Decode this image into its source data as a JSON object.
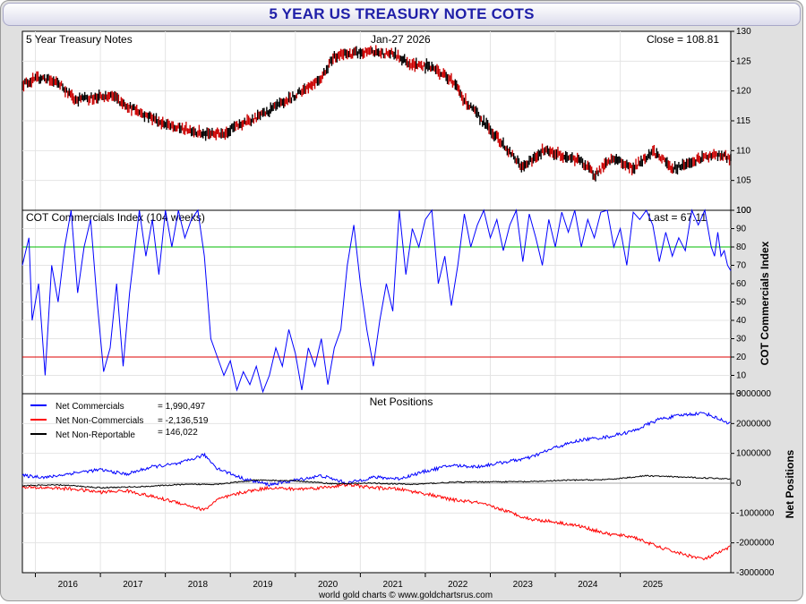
{
  "title": "5 YEAR US TREASURY NOTE COTS",
  "footer": "world gold charts © www.goldchartsrus.com",
  "colors": {
    "title": "#1f1fa8",
    "commercials": "#0000ff",
    "non_commercials": "#ff0000",
    "non_reportable": "#000000",
    "upper_band": "#00bb00",
    "lower_band": "#dd0000"
  },
  "x_axis": {
    "years": [
      "2016",
      "2017",
      "2018",
      "2019",
      "2020",
      "2021",
      "2022",
      "2023",
      "2024",
      "2025"
    ],
    "range": [
      2015.2,
      2026.1
    ]
  },
  "chart_data": [
    {
      "type": "bar",
      "style": "ohlc",
      "title": "5 Year Treasury Notes",
      "date": "Jan-27  2026",
      "last_label": "Close = 108.81",
      "ylim": [
        100,
        130
      ],
      "yticks": [
        "100",
        "105",
        "110",
        "115",
        "120",
        "125",
        "130"
      ],
      "points": [
        [
          2015.2,
          121.2
        ],
        [
          2015.5,
          122.3
        ],
        [
          2015.8,
          121.0
        ],
        [
          2016.0,
          118.6
        ],
        [
          2016.3,
          118.9
        ],
        [
          2016.6,
          119.0
        ],
        [
          2016.9,
          117.0
        ],
        [
          2017.2,
          115.5
        ],
        [
          2017.5,
          113.9
        ],
        [
          2017.8,
          113.5
        ],
        [
          2018.0,
          112.7
        ],
        [
          2018.3,
          113.0
        ],
        [
          2018.6,
          114.6
        ],
        [
          2018.9,
          116.0
        ],
        [
          2019.2,
          117.9
        ],
        [
          2019.5,
          120.0
        ],
        [
          2019.8,
          122.3
        ],
        [
          2020.0,
          125.9
        ],
        [
          2020.3,
          126.3
        ],
        [
          2020.6,
          126.5
        ],
        [
          2020.9,
          126.2
        ],
        [
          2021.2,
          124.5
        ],
        [
          2021.5,
          124.0
        ],
        [
          2021.8,
          122.0
        ],
        [
          2022.0,
          118.5
        ],
        [
          2022.3,
          114.7
        ],
        [
          2022.6,
          111.0
        ],
        [
          2022.9,
          107.1
        ],
        [
          2023.2,
          110.0
        ],
        [
          2023.5,
          109.3
        ],
        [
          2023.8,
          108.2
        ],
        [
          2024.0,
          106.0
        ],
        [
          2024.3,
          108.7
        ],
        [
          2024.6,
          107.0
        ],
        [
          2024.9,
          110.0
        ],
        [
          2025.2,
          107.0
        ],
        [
          2025.5,
          108.0
        ],
        [
          2025.8,
          109.3
        ],
        [
          2026.1,
          108.8
        ]
      ]
    },
    {
      "type": "line",
      "title": "COT Commercials Index (104 weeks)",
      "last_label": "Last = 67.11",
      "ylabel": "COT Commercials Index",
      "ylim": [
        0,
        100
      ],
      "yticks": [
        "0",
        "10",
        "20",
        "30",
        "40",
        "50",
        "60",
        "70",
        "80",
        "90",
        "100"
      ],
      "reference_lines": [
        80,
        20
      ],
      "points": [
        [
          2015.2,
          70
        ],
        [
          2015.3,
          85
        ],
        [
          2015.35,
          40
        ],
        [
          2015.45,
          60
        ],
        [
          2015.55,
          10
        ],
        [
          2015.65,
          70
        ],
        [
          2015.75,
          50
        ],
        [
          2015.85,
          80
        ],
        [
          2015.95,
          100
        ],
        [
          2016.05,
          55
        ],
        [
          2016.15,
          80
        ],
        [
          2016.25,
          95
        ],
        [
          2016.35,
          50
        ],
        [
          2016.45,
          12
        ],
        [
          2016.55,
          25
        ],
        [
          2016.65,
          60
        ],
        [
          2016.75,
          15
        ],
        [
          2016.85,
          55
        ],
        [
          2017.0,
          100
        ],
        [
          2017.1,
          75
        ],
        [
          2017.2,
          95
        ],
        [
          2017.3,
          65
        ],
        [
          2017.4,
          100
        ],
        [
          2017.5,
          80
        ],
        [
          2017.6,
          100
        ],
        [
          2017.7,
          85
        ],
        [
          2017.8,
          95
        ],
        [
          2017.9,
          100
        ],
        [
          2018.0,
          75
        ],
        [
          2018.1,
          30
        ],
        [
          2018.2,
          20
        ],
        [
          2018.3,
          10
        ],
        [
          2018.4,
          18
        ],
        [
          2018.5,
          2
        ],
        [
          2018.6,
          12
        ],
        [
          2018.7,
          5
        ],
        [
          2018.8,
          15
        ],
        [
          2018.9,
          1
        ],
        [
          2019.0,
          10
        ],
        [
          2019.1,
          25
        ],
        [
          2019.2,
          15
        ],
        [
          2019.3,
          35
        ],
        [
          2019.4,
          22
        ],
        [
          2019.5,
          2
        ],
        [
          2019.6,
          25
        ],
        [
          2019.7,
          15
        ],
        [
          2019.8,
          30
        ],
        [
          2019.9,
          5
        ],
        [
          2020.0,
          25
        ],
        [
          2020.1,
          35
        ],
        [
          2020.2,
          70
        ],
        [
          2020.3,
          92
        ],
        [
          2020.4,
          60
        ],
        [
          2020.5,
          35
        ],
        [
          2020.6,
          15
        ],
        [
          2020.7,
          40
        ],
        [
          2020.8,
          60
        ],
        [
          2020.9,
          45
        ],
        [
          2021.0,
          100
        ],
        [
          2021.1,
          65
        ],
        [
          2021.2,
          90
        ],
        [
          2021.3,
          80
        ],
        [
          2021.4,
          95
        ],
        [
          2021.5,
          100
        ],
        [
          2021.6,
          60
        ],
        [
          2021.7,
          75
        ],
        [
          2021.8,
          48
        ],
        [
          2021.9,
          70
        ],
        [
          2022.0,
          98
        ],
        [
          2022.1,
          80
        ],
        [
          2022.2,
          92
        ],
        [
          2022.3,
          100
        ],
        [
          2022.4,
          85
        ],
        [
          2022.5,
          95
        ],
        [
          2022.6,
          78
        ],
        [
          2022.7,
          92
        ],
        [
          2022.8,
          100
        ],
        [
          2022.9,
          72
        ],
        [
          2023.0,
          98
        ],
        [
          2023.1,
          85
        ],
        [
          2023.2,
          70
        ],
        [
          2023.3,
          95
        ],
        [
          2023.4,
          80
        ],
        [
          2023.5,
          99
        ],
        [
          2023.6,
          88
        ],
        [
          2023.7,
          100
        ],
        [
          2023.8,
          80
        ],
        [
          2023.9,
          95
        ],
        [
          2024.0,
          85
        ],
        [
          2024.1,
          99
        ],
        [
          2024.2,
          100
        ],
        [
          2024.3,
          80
        ],
        [
          2024.4,
          90
        ],
        [
          2024.5,
          70
        ],
        [
          2024.6,
          99
        ],
        [
          2024.7,
          95
        ],
        [
          2024.8,
          100
        ],
        [
          2024.9,
          92
        ],
        [
          2025.0,
          72
        ],
        [
          2025.1,
          88
        ],
        [
          2025.2,
          75
        ],
        [
          2025.3,
          85
        ],
        [
          2025.4,
          78
        ],
        [
          2025.5,
          100
        ],
        [
          2025.6,
          92
        ],
        [
          2025.7,
          100
        ],
        [
          2025.8,
          80
        ],
        [
          2025.85,
          75
        ],
        [
          2025.9,
          88
        ],
        [
          2025.95,
          75
        ],
        [
          2026.0,
          78
        ],
        [
          2026.05,
          70
        ],
        [
          2026.1,
          67
        ]
      ]
    },
    {
      "type": "line",
      "title": "Net Positions",
      "ylabel": "Net Positions",
      "ylim": [
        -3000000,
        3000000
      ],
      "yticks": [
        "3000000",
        "2000000",
        "1000000",
        "0",
        "-1000000",
        "-2000000",
        "-3000000"
      ],
      "legend_position": "top-left",
      "series": [
        {
          "name": "Net Commercials",
          "value_label": "= 1,990,497",
          "color_key": "commercials",
          "points": [
            [
              2015.2,
              250000
            ],
            [
              2015.6,
              200000
            ],
            [
              2016.0,
              350000
            ],
            [
              2016.4,
              450000
            ],
            [
              2016.8,
              300000
            ],
            [
              2017.2,
              550000
            ],
            [
              2017.6,
              650000
            ],
            [
              2018.0,
              950000
            ],
            [
              2018.2,
              500000
            ],
            [
              2018.6,
              150000
            ],
            [
              2019.0,
              -50000
            ],
            [
              2019.4,
              100000
            ],
            [
              2019.8,
              250000
            ],
            [
              2020.2,
              0
            ],
            [
              2020.6,
              200000
            ],
            [
              2021.0,
              150000
            ],
            [
              2021.4,
              400000
            ],
            [
              2021.8,
              600000
            ],
            [
              2022.2,
              550000
            ],
            [
              2022.6,
              700000
            ],
            [
              2023.0,
              850000
            ],
            [
              2023.4,
              1200000
            ],
            [
              2023.8,
              1450000
            ],
            [
              2024.2,
              1550000
            ],
            [
              2024.6,
              1750000
            ],
            [
              2025.0,
              2150000
            ],
            [
              2025.4,
              2300000
            ],
            [
              2025.7,
              2350000
            ],
            [
              2026.1,
              1990000
            ]
          ]
        },
        {
          "name": "Net Non-Commercials",
          "value_label": "= -2,136,519",
          "color_key": "non_commercials",
          "points": [
            [
              2015.2,
              -150000
            ],
            [
              2015.6,
              -150000
            ],
            [
              2016.0,
              -200000
            ],
            [
              2016.4,
              -300000
            ],
            [
              2016.8,
              -250000
            ],
            [
              2017.2,
              -450000
            ],
            [
              2017.6,
              -650000
            ],
            [
              2018.0,
              -900000
            ],
            [
              2018.2,
              -550000
            ],
            [
              2018.6,
              -300000
            ],
            [
              2019.0,
              -150000
            ],
            [
              2019.4,
              -200000
            ],
            [
              2019.8,
              -150000
            ],
            [
              2020.2,
              -50000
            ],
            [
              2020.6,
              -150000
            ],
            [
              2021.0,
              -200000
            ],
            [
              2021.4,
              -350000
            ],
            [
              2021.8,
              -550000
            ],
            [
              2022.2,
              -650000
            ],
            [
              2022.6,
              -900000
            ],
            [
              2023.0,
              -1200000
            ],
            [
              2023.4,
              -1300000
            ],
            [
              2023.8,
              -1450000
            ],
            [
              2024.2,
              -1700000
            ],
            [
              2024.6,
              -1800000
            ],
            [
              2025.0,
              -2150000
            ],
            [
              2025.4,
              -2400000
            ],
            [
              2025.7,
              -2550000
            ],
            [
              2026.1,
              -2136519
            ]
          ]
        },
        {
          "name": "Net Non-Reportable",
          "value_label": "= 146,022",
          "color_key": "non_reportable",
          "points": [
            [
              2015.2,
              -80000
            ],
            [
              2015.8,
              -60000
            ],
            [
              2016.4,
              -150000
            ],
            [
              2017.0,
              -120000
            ],
            [
              2017.6,
              -50000
            ],
            [
              2018.2,
              -30000
            ],
            [
              2018.8,
              100000
            ],
            [
              2019.4,
              80000
            ],
            [
              2020.0,
              -20000
            ],
            [
              2020.6,
              0
            ],
            [
              2021.2,
              -40000
            ],
            [
              2021.8,
              30000
            ],
            [
              2022.4,
              50000
            ],
            [
              2023.0,
              50000
            ],
            [
              2023.6,
              100000
            ],
            [
              2024.2,
              120000
            ],
            [
              2024.8,
              250000
            ],
            [
              2025.4,
              200000
            ],
            [
              2026.1,
              146022
            ]
          ]
        }
      ]
    }
  ]
}
